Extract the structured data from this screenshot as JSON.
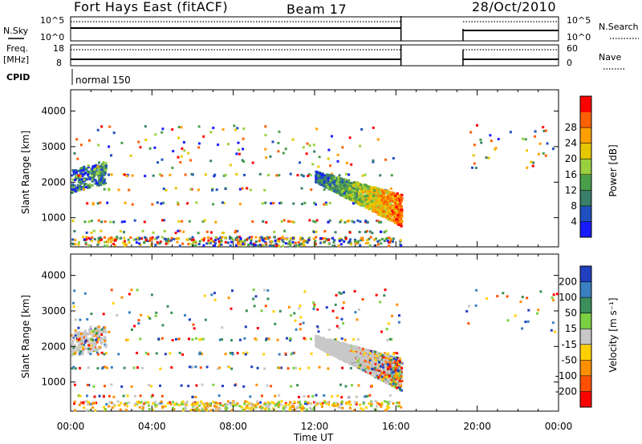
{
  "header": {
    "station": "Fort Hays East (fitACF)",
    "beam": "Beam 17",
    "date": "28/Oct/2010"
  },
  "status_panels": {
    "nsky_label": "N.Sky",
    "nsearch_label": "N.Search",
    "noise_ticks": [
      "10^5",
      "10^0"
    ],
    "freq_label": "Freq.",
    "freq_unit": "[MHz]",
    "freq_ticks": [
      "18",
      "8"
    ],
    "nave_label": "Nave",
    "nave_ticks": [
      "60",
      "0"
    ],
    "cpid_label": "CPID",
    "cpid_value": "normal 150"
  },
  "chart_data": [
    {
      "type": "heatmap",
      "panel": "power",
      "xlabel": "",
      "ylabel": "Slant Range [km]",
      "xlim": [
        0,
        24
      ],
      "ylim": [
        180,
        4600
      ],
      "yticks": [
        1000,
        2000,
        3000,
        4000
      ],
      "colorbar": {
        "label": "Power [dB]",
        "range": [
          0,
          32
        ],
        "ticks": [
          "4",
          "8",
          "12",
          "16",
          "20",
          "24",
          "28"
        ],
        "colors": [
          "#1a1aff",
          "#2050c0",
          "#3a7f6a",
          "#4aa04a",
          "#9ad040",
          "#e6c800",
          "#ffa000",
          "#ff6000",
          "#ff0000"
        ]
      },
      "data_gap_hours": [
        16.25,
        19.3
      ]
    },
    {
      "type": "heatmap",
      "panel": "velocity",
      "xlabel": "Time UT",
      "ylabel": "Slant Range [km]",
      "xlim": [
        0,
        24
      ],
      "ylim": [
        180,
        4600
      ],
      "yticks": [
        1000,
        2000,
        3000,
        4000
      ],
      "xticks": [
        "00:00",
        "04:00",
        "08:00",
        "12:00",
        "16:00",
        "20:00",
        "00:00"
      ],
      "colorbar": {
        "label": "Velocity [m s⁻¹]",
        "ticks": [
          "200",
          "100",
          "50",
          "15",
          "-15",
          "-50",
          "-100",
          "-200"
        ],
        "colors": [
          "#2040c0",
          "#3a7fc0",
          "#3a8f5a",
          "#7ad040",
          "#c8c8c8",
          "#ffd000",
          "#ff9000",
          "#ff5000",
          "#ff0000"
        ]
      },
      "data_gap_hours": [
        16.25,
        19.3
      ]
    }
  ]
}
